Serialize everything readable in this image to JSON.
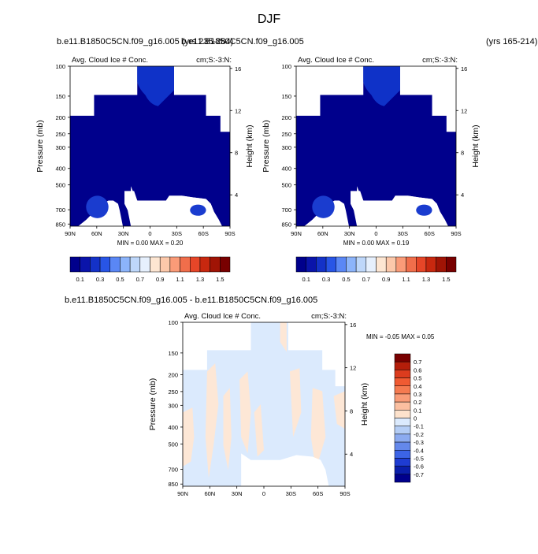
{
  "title": "DJF",
  "colors": {
    "dark_blue": "#00008c",
    "light_blue": "#dbeafd",
    "light_peach": "#fde7d6",
    "blue_feature": "#0f32c8"
  },
  "chart_data": [
    {
      "type": "heatmap",
      "case_title": "b.e11.B1850C5CN.f09_g16.005 (yrs 235-284)",
      "left_title": "Avg. Cloud Ice # Conc.",
      "right_title": "cm;S:-3:N:",
      "ylabel": "Pressure (mb)",
      "ylabel_right": "Height (km)",
      "x_tick_labels": [
        "90N",
        "60N",
        "30N",
        "0",
        "30S",
        "60S",
        "90S"
      ],
      "y_ticks": [
        100,
        150,
        200,
        250,
        300,
        400,
        500,
        700,
        850
      ],
      "height_ticks": [
        16,
        12,
        8,
        4
      ],
      "stats": {
        "min_label": "MIN =",
        "min": "0.00",
        "max_label": "MAX =",
        "max": "0.20"
      },
      "colorbar": {
        "labels": [
          "0.1",
          "0.3",
          "0.5",
          "0.7",
          "0.9",
          "1.1",
          "1.3",
          "1.5"
        ],
        "colors": [
          "#00008c",
          "#0a14aa",
          "#1432c8",
          "#2855e6",
          "#5a87f5",
          "#8cb4fa",
          "#bed7fa",
          "#e6f0fd",
          "#fde6d2",
          "#fcc8aa",
          "#fa9b78",
          "#f06e4b",
          "#e64628",
          "#c8280f",
          "#a01405",
          "#780000"
        ]
      }
    },
    {
      "type": "heatmap",
      "case_title": "b.e11.B1850C5CN.f09_g16.005",
      "years": "(yrs 165-214)",
      "left_title": "Avg. Cloud Ice # Conc.",
      "right_title": "cm;S:-3:N:",
      "ylabel": "Pressure (mb)",
      "ylabel_right": "Height (km)",
      "x_tick_labels": [
        "90N",
        "60N",
        "30N",
        "0",
        "30S",
        "60S",
        "90S"
      ],
      "y_ticks": [
        100,
        150,
        200,
        250,
        300,
        400,
        500,
        700,
        850
      ],
      "height_ticks": [
        16,
        12,
        8,
        4
      ],
      "stats": {
        "min_label": "MIN =",
        "min": "0.00",
        "max_label": "MAX =",
        "max": "0.19"
      },
      "colorbar": {
        "labels": [
          "0.1",
          "0.3",
          "0.5",
          "0.7",
          "0.9",
          "1.1",
          "1.3",
          "1.5"
        ],
        "colors": [
          "#00008c",
          "#0a14aa",
          "#1432c8",
          "#2855e6",
          "#5a87f5",
          "#8cb4fa",
          "#bed7fa",
          "#e6f0fd",
          "#fde6d2",
          "#fcc8aa",
          "#fa9b78",
          "#f06e4b",
          "#e64628",
          "#c8280f",
          "#a01405",
          "#780000"
        ]
      }
    },
    {
      "type": "heatmap",
      "case_title": "b.e11.B1850C5CN.f09_g16.005 - b.e11.B1850C5CN.f09_g16.005",
      "left_title": "Avg. Cloud Ice # Conc.",
      "right_title": "cm;S:-3:N:",
      "ylabel": "Pressure (mb)",
      "ylabel_right": "Height (km)",
      "x_tick_labels": [
        "90N",
        "60N",
        "30N",
        "0",
        "30S",
        "60S",
        "90S"
      ],
      "y_ticks": [
        100,
        150,
        200,
        250,
        300,
        400,
        500,
        700,
        850
      ],
      "height_ticks": [
        16,
        12,
        8,
        4
      ],
      "stats": {
        "min_label": "MIN =",
        "min": "-0.05",
        "max_label": "MAX =",
        "max": "0.05"
      },
      "colorbar": {
        "labels": [
          "0.7",
          "0.6",
          "0.5",
          "0.4",
          "0.3",
          "0.2",
          "0.1",
          "0",
          "-0.1",
          "-0.2",
          "-0.3",
          "-0.4",
          "-0.5",
          "-0.6",
          "-0.7"
        ],
        "colors": [
          "#780000",
          "#b41e0a",
          "#dc3c1e",
          "#f05a32",
          "#f57a50",
          "#f99c78",
          "#fbbfa0",
          "#fde2cc",
          "#dbeafd",
          "#b4cdf5",
          "#8cabf0",
          "#6488eb",
          "#3c64e6",
          "#1e3cd2",
          "#0a1eaa",
          "#00008c"
        ]
      }
    }
  ]
}
